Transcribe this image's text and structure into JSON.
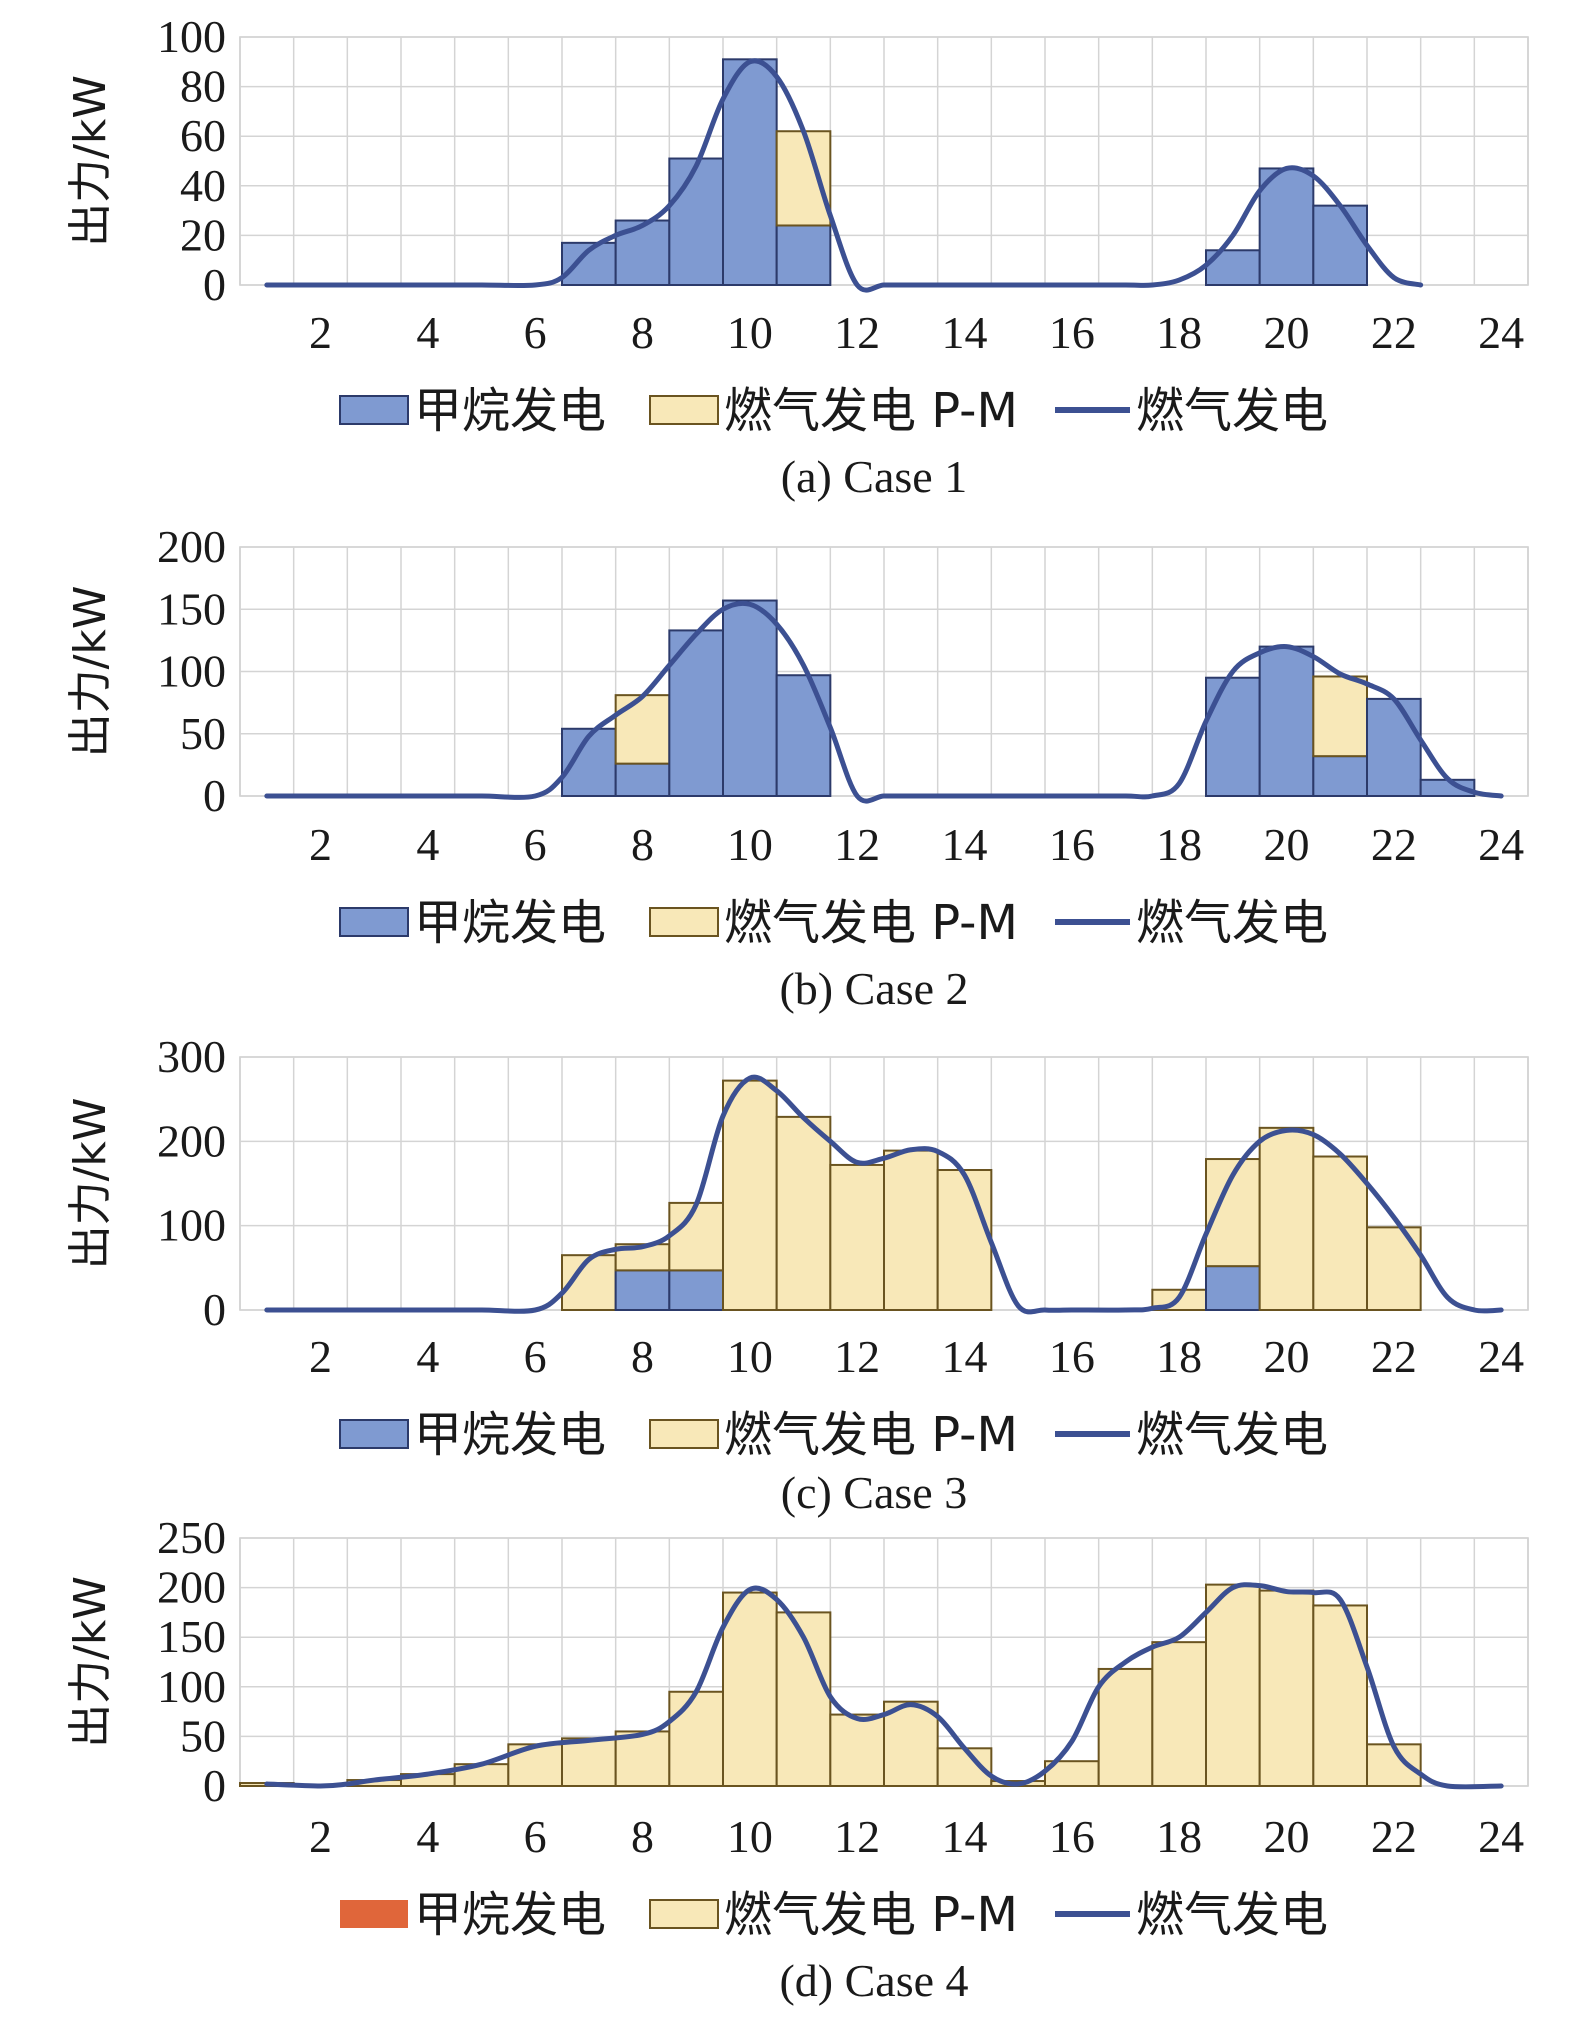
{
  "chart_data": [
    {
      "type": "bar",
      "caption": "(a) Case 1",
      "ylabel": "出力/kW",
      "ylim": [
        0,
        100
      ],
      "yticks": [
        0,
        20,
        40,
        60,
        80,
        100
      ],
      "xticks": [
        2,
        4,
        6,
        8,
        10,
        12,
        14,
        16,
        18,
        20,
        22,
        24
      ],
      "xlim": [
        0.5,
        24.5
      ],
      "stacked": true,
      "legend": [
        "甲烷发电",
        "燃气发电 P-M",
        "燃气发电"
      ],
      "legend_placement": "bottom",
      "colors": {
        "methane": "#7f9ad1",
        "methane_legend": "#7f9ad1",
        "gas": "#f8e8b8",
        "line": "#3c5092"
      },
      "x": [
        1,
        2,
        3,
        4,
        5,
        6,
        7,
        8,
        9,
        10,
        11,
        12,
        13,
        14,
        15,
        16,
        17,
        18,
        19,
        20,
        21,
        22,
        23,
        24
      ],
      "series": [
        {
          "name": "甲烷发电",
          "values": [
            0,
            0,
            0,
            0,
            0,
            0,
            17,
            26,
            51,
            91,
            24,
            0,
            0,
            0,
            0,
            0,
            0,
            0,
            14,
            47,
            32,
            0,
            0,
            0
          ]
        },
        {
          "name": "燃气发电 P-M",
          "values": [
            0,
            0,
            0,
            0,
            0,
            0,
            0,
            0,
            0,
            0,
            38,
            0,
            0,
            0,
            0,
            0,
            0,
            0,
            0,
            0,
            0,
            0,
            0,
            0
          ]
        }
      ],
      "line": {
        "name": "燃气发电",
        "points": [
          [
            1,
            0
          ],
          [
            2,
            0
          ],
          [
            3,
            0
          ],
          [
            4,
            0
          ],
          [
            5,
            0
          ],
          [
            6,
            0
          ],
          [
            6.5,
            3
          ],
          [
            7,
            14
          ],
          [
            7.5,
            20
          ],
          [
            8,
            24
          ],
          [
            8.5,
            32
          ],
          [
            9,
            48
          ],
          [
            9.5,
            75
          ],
          [
            10,
            90
          ],
          [
            10.5,
            84
          ],
          [
            11,
            62
          ],
          [
            11.5,
            28
          ],
          [
            12,
            0
          ],
          [
            12.5,
            0
          ],
          [
            13,
            0
          ],
          [
            14,
            0
          ],
          [
            15,
            0
          ],
          [
            16,
            0
          ],
          [
            17,
            0
          ],
          [
            17.5,
            0
          ],
          [
            18,
            2
          ],
          [
            18.5,
            8
          ],
          [
            19,
            20
          ],
          [
            19.5,
            38
          ],
          [
            20,
            47
          ],
          [
            20.5,
            44
          ],
          [
            21,
            32
          ],
          [
            21.5,
            16
          ],
          [
            22,
            3
          ],
          [
            22.5,
            0
          ]
        ]
      }
    },
    {
      "type": "bar",
      "caption": "(b) Case 2",
      "ylabel": "出力/kW",
      "ylim": [
        0,
        200
      ],
      "yticks": [
        0,
        50,
        100,
        150,
        200
      ],
      "xticks": [
        2,
        4,
        6,
        8,
        10,
        12,
        14,
        16,
        18,
        20,
        22,
        24
      ],
      "xlim": [
        0.5,
        24.5
      ],
      "stacked": true,
      "legend": [
        "甲烷发电",
        "燃气发电 P-M",
        "燃气发电"
      ],
      "legend_placement": "bottom",
      "colors": {
        "methane": "#7f9ad1",
        "methane_legend": "#7f9ad1",
        "gas": "#f8e8b8",
        "line": "#3c5092"
      },
      "x": [
        1,
        2,
        3,
        4,
        5,
        6,
        7,
        8,
        9,
        10,
        11,
        12,
        13,
        14,
        15,
        16,
        17,
        18,
        19,
        20,
        21,
        22,
        23,
        24
      ],
      "series": [
        {
          "name": "甲烷发电",
          "values": [
            0,
            0,
            0,
            0,
            0,
            0,
            54,
            26,
            133,
            157,
            97,
            0,
            0,
            0,
            0,
            0,
            0,
            0,
            95,
            120,
            32,
            78,
            13,
            0
          ]
        },
        {
          "name": "燃气发电 P-M",
          "values": [
            0,
            0,
            0,
            0,
            0,
            0,
            0,
            55,
            0,
            0,
            0,
            0,
            0,
            0,
            0,
            0,
            0,
            0,
            0,
            0,
            64,
            0,
            0,
            0
          ]
        }
      ],
      "line": {
        "name": "燃气发电",
        "points": [
          [
            1,
            0
          ],
          [
            2,
            0
          ],
          [
            3,
            0
          ],
          [
            4,
            0
          ],
          [
            5,
            0
          ],
          [
            6,
            0
          ],
          [
            6.5,
            15
          ],
          [
            7,
            48
          ],
          [
            7.5,
            65
          ],
          [
            8,
            80
          ],
          [
            8.5,
            105
          ],
          [
            9,
            130
          ],
          [
            9.5,
            150
          ],
          [
            10,
            154
          ],
          [
            10.5,
            138
          ],
          [
            11,
            105
          ],
          [
            11.5,
            55
          ],
          [
            12,
            0
          ],
          [
            12.5,
            0
          ],
          [
            13,
            0
          ],
          [
            14,
            0
          ],
          [
            15,
            0
          ],
          [
            16,
            0
          ],
          [
            17,
            0
          ],
          [
            17.5,
            0
          ],
          [
            18,
            10
          ],
          [
            18.5,
            60
          ],
          [
            19,
            100
          ],
          [
            19.5,
            115
          ],
          [
            20,
            120
          ],
          [
            20.5,
            112
          ],
          [
            21,
            98
          ],
          [
            21.5,
            90
          ],
          [
            22,
            78
          ],
          [
            22.5,
            45
          ],
          [
            23,
            14
          ],
          [
            23.5,
            3
          ],
          [
            24,
            0
          ]
        ]
      }
    },
    {
      "type": "bar",
      "caption": "(c) Case 3",
      "ylabel": "出力/kW",
      "ylim": [
        0,
        300
      ],
      "yticks": [
        0,
        100,
        200,
        300
      ],
      "xticks": [
        2,
        4,
        6,
        8,
        10,
        12,
        14,
        16,
        18,
        20,
        22,
        24
      ],
      "xlim": [
        0.5,
        24.5
      ],
      "stacked": true,
      "legend": [
        "甲烷发电",
        "燃气发电 P-M",
        "燃气发电"
      ],
      "legend_placement": "bottom",
      "colors": {
        "methane": "#7f9ad1",
        "methane_legend": "#7f9ad1",
        "gas": "#f8e8b8",
        "line": "#3c5092"
      },
      "x": [
        1,
        2,
        3,
        4,
        5,
        6,
        7,
        8,
        9,
        10,
        11,
        12,
        13,
        14,
        15,
        16,
        17,
        18,
        19,
        20,
        21,
        22,
        23,
        24
      ],
      "series": [
        {
          "name": "甲烷发电",
          "values": [
            0,
            0,
            0,
            0,
            0,
            0,
            0,
            47,
            47,
            0,
            0,
            0,
            0,
            0,
            0,
            0,
            0,
            0,
            52,
            0,
            0,
            0,
            0,
            0
          ]
        },
        {
          "name": "燃气发电 P-M",
          "values": [
            0,
            0,
            0,
            0,
            0,
            0,
            65,
            31,
            80,
            272,
            229,
            172,
            189,
            166,
            0,
            0,
            0,
            24,
            127,
            216,
            182,
            98,
            0,
            0
          ]
        }
      ],
      "line": {
        "name": "燃气发电",
        "points": [
          [
            1,
            0
          ],
          [
            2,
            0
          ],
          [
            3,
            0
          ],
          [
            4,
            0
          ],
          [
            5,
            0
          ],
          [
            6,
            0
          ],
          [
            6.5,
            20
          ],
          [
            7,
            60
          ],
          [
            7.5,
            72
          ],
          [
            8,
            75
          ],
          [
            8.5,
            88
          ],
          [
            9,
            125
          ],
          [
            9.5,
            230
          ],
          [
            10,
            275
          ],
          [
            10.5,
            260
          ],
          [
            11,
            228
          ],
          [
            11.5,
            200
          ],
          [
            12,
            175
          ],
          [
            12.5,
            180
          ],
          [
            13,
            190
          ],
          [
            13.5,
            188
          ],
          [
            14,
            160
          ],
          [
            14.5,
            80
          ],
          [
            15,
            5
          ],
          [
            15.5,
            0
          ],
          [
            16,
            0
          ],
          [
            17,
            0
          ],
          [
            17.5,
            2
          ],
          [
            18,
            15
          ],
          [
            18.5,
            90
          ],
          [
            19,
            160
          ],
          [
            19.5,
            200
          ],
          [
            20,
            213
          ],
          [
            20.5,
            208
          ],
          [
            21,
            185
          ],
          [
            21.5,
            150
          ],
          [
            22,
            110
          ],
          [
            22.5,
            65
          ],
          [
            23,
            15
          ],
          [
            23.5,
            0
          ],
          [
            24,
            0
          ]
        ]
      }
    },
    {
      "type": "bar",
      "caption": "(d) Case 4",
      "ylabel": "出力/kW",
      "ylim": [
        0,
        250
      ],
      "yticks": [
        0,
        50,
        100,
        150,
        200,
        250
      ],
      "xticks": [
        2,
        4,
        6,
        8,
        10,
        12,
        14,
        16,
        18,
        20,
        22,
        24
      ],
      "xlim": [
        0.5,
        24.5
      ],
      "stacked": true,
      "legend": [
        "甲烷发电",
        "燃气发电 P-M",
        "燃气发电"
      ],
      "legend_placement": "bottom",
      "colors": {
        "methane": "#7f9ad1",
        "methane_legend": "#e0663a",
        "gas": "#f8e8b8",
        "line": "#3c5092"
      },
      "x": [
        1,
        2,
        3,
        4,
        5,
        6,
        7,
        8,
        9,
        10,
        11,
        12,
        13,
        14,
        15,
        16,
        17,
        18,
        19,
        20,
        21,
        22,
        23,
        24
      ],
      "series": [
        {
          "name": "甲烷发电",
          "values": [
            0,
            0,
            0,
            0,
            0,
            0,
            0,
            0,
            0,
            0,
            0,
            0,
            0,
            0,
            0,
            0,
            0,
            0,
            0,
            0,
            0,
            0,
            0,
            0
          ]
        },
        {
          "name": "燃气发电 P-M",
          "values": [
            3,
            0,
            6,
            12,
            22,
            42,
            48,
            55,
            95,
            195,
            175,
            72,
            85,
            38,
            5,
            25,
            118,
            145,
            203,
            197,
            182,
            42,
            0,
            0
          ]
        }
      ],
      "line": {
        "name": "燃气发电",
        "points": [
          [
            1,
            2
          ],
          [
            2,
            0
          ],
          [
            2.5,
            2
          ],
          [
            3,
            6
          ],
          [
            4,
            12
          ],
          [
            5,
            22
          ],
          [
            6,
            40
          ],
          [
            7,
            46
          ],
          [
            8,
            52
          ],
          [
            8.5,
            65
          ],
          [
            9,
            95
          ],
          [
            9.5,
            160
          ],
          [
            10,
            198
          ],
          [
            10.5,
            188
          ],
          [
            11,
            150
          ],
          [
            11.5,
            90
          ],
          [
            12,
            68
          ],
          [
            12.5,
            72
          ],
          [
            13,
            82
          ],
          [
            13.5,
            70
          ],
          [
            14,
            38
          ],
          [
            14.5,
            10
          ],
          [
            15,
            2
          ],
          [
            15.5,
            15
          ],
          [
            16,
            45
          ],
          [
            16.5,
            100
          ],
          [
            17,
            125
          ],
          [
            17.5,
            140
          ],
          [
            18,
            150
          ],
          [
            18.5,
            175
          ],
          [
            19,
            200
          ],
          [
            19.5,
            202
          ],
          [
            20,
            196
          ],
          [
            20.5,
            195
          ],
          [
            21,
            188
          ],
          [
            21.5,
            120
          ],
          [
            22,
            40
          ],
          [
            22.5,
            12
          ],
          [
            23,
            0
          ],
          [
            24,
            0
          ]
        ]
      }
    }
  ]
}
